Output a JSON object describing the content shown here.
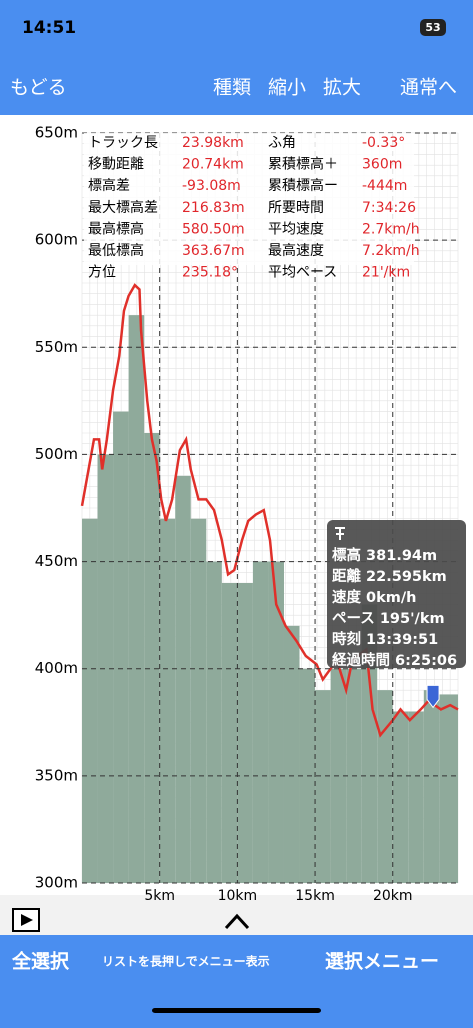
{
  "status_bar": {
    "time": "14:51",
    "battery": "53"
  },
  "nav": {
    "back": "もどる",
    "kind": "種類",
    "zoom_out": "縮小",
    "zoom_in": "拡大",
    "normal": "通常へ"
  },
  "stats": [
    [
      "トラック長",
      "23.98km",
      "ふ角",
      "-0.33°"
    ],
    [
      "移動距離",
      "20.74km",
      "累積標高＋",
      "360m"
    ],
    [
      "標高差",
      "-93.08m",
      "累積標高ー",
      "-444m"
    ],
    [
      "最大標高差",
      "216.83m",
      "所要時間",
      "7:34:26"
    ],
    [
      "最高標高",
      "580.50m",
      "平均速度",
      "2.7km/h"
    ],
    [
      "最低標高",
      "363.67m",
      "最高速度",
      "7.2km/h"
    ],
    [
      "方位",
      "235.18°",
      "平均ペース",
      "21'/km"
    ]
  ],
  "chart_data": {
    "type": "line",
    "series": [
      {
        "type": "bar",
        "color": "#8faa9b",
        "x": [
          0,
          1,
          2,
          3,
          4,
          5,
          6,
          7,
          8,
          9,
          10,
          11,
          12,
          13,
          14,
          15,
          16,
          17,
          18,
          19,
          20,
          21,
          22,
          23
        ],
        "values": [
          470,
          500,
          520,
          565,
          510,
          470,
          490,
          470,
          450,
          440,
          440,
          450,
          450,
          420,
          400,
          390,
          400,
          400,
          430,
          390,
          380,
          380,
          390,
          388
        ]
      },
      {
        "type": "line",
        "color": "#e0302a",
        "x": [
          0,
          0.77,
          1.1,
          1.3,
          1.6,
          2.0,
          2.4,
          2.7,
          3.0,
          3.4,
          3.7,
          3.8,
          4.2,
          4.5,
          4.8,
          5.1,
          5.4,
          5.8,
          6.3,
          6.7,
          7.0,
          7.5,
          8.0,
          8.5,
          9.0,
          9.4,
          9.8,
          10.3,
          10.7,
          11.2,
          11.7,
          12.1,
          12.5,
          13.1,
          13.8,
          14.4,
          15.1,
          15.5,
          16.4,
          17.0,
          17.4,
          18.3,
          18.7,
          19.2,
          20.0,
          20.5,
          21.1,
          21.8,
          22.3,
          23.1,
          23.7,
          24.2
        ],
        "values": [
          476,
          507,
          507,
          493,
          507,
          530,
          546,
          567,
          574,
          579,
          577,
          558,
          525,
          507,
          497,
          479,
          469,
          479,
          502,
          507,
          493,
          479,
          479,
          474,
          460,
          444,
          446,
          460,
          469,
          472,
          474,
          460,
          430,
          420,
          413,
          406,
          402,
          395,
          404,
          390,
          404,
          409,
          381,
          369,
          376,
          381,
          376,
          381,
          385,
          381,
          383,
          381
        ]
      }
    ],
    "xlim": [
      0,
      24.2
    ],
    "ylim": [
      300,
      650
    ],
    "xticks": [
      {
        "value": 5,
        "label": "5km"
      },
      {
        "value": 10,
        "label": "10km"
      },
      {
        "value": 15,
        "label": "15km"
      },
      {
        "value": 20,
        "label": "20km"
      }
    ],
    "yticks": [
      {
        "value": 300,
        "label": "300m"
      },
      {
        "value": 350,
        "label": "350m"
      },
      {
        "value": 400,
        "label": "400m"
      },
      {
        "value": 450,
        "label": "450m"
      },
      {
        "value": 500,
        "label": "500m"
      },
      {
        "value": 550,
        "label": "550m"
      },
      {
        "value": 600,
        "label": "600m"
      },
      {
        "value": 650,
        "label": "650m"
      }
    ],
    "grid": true,
    "tooltip": {
      "lines": [
        "標高 381.94m",
        "距離 22.595km",
        "速度 0km/h",
        "ペース 195'/km",
        "時刻 13:39:51",
        "経過時間 6:25:06"
      ],
      "marker_x": 22.595,
      "marker_y": 381.94
    }
  },
  "footer": {
    "select_all": "全選択",
    "hint": "リストを長押しでメニュー表示",
    "select_menu": "選択メニュー"
  }
}
